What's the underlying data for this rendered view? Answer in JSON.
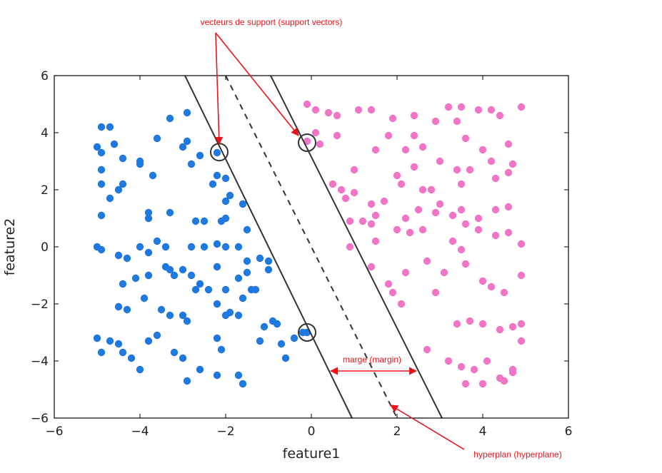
{
  "chart_data": {
    "type": "scatter",
    "title": "",
    "xlabel": "feature1",
    "ylabel": "feature2",
    "xlim": [
      -6,
      6
    ],
    "ylim": [
      -6,
      6
    ],
    "xticks": [
      -6,
      -4,
      -2,
      0,
      2,
      4,
      6
    ],
    "yticks": [
      -6,
      -4,
      -2,
      0,
      2,
      4,
      6
    ],
    "xtick_labels": [
      "−6",
      "−4",
      "−2",
      "0",
      "2",
      "4",
      "6"
    ],
    "ytick_labels": [
      "−6",
      "−4",
      "−2",
      "0",
      "2",
      "4",
      "6"
    ],
    "grid": false,
    "colors": {
      "class_a": "#1f77e0",
      "class_b": "#f075c6",
      "lines": "#333333",
      "annotations": "#e8141c"
    },
    "series": [
      {
        "points": [
          [
            -5.0,
            3.5
          ],
          [
            -4.9,
            4.2
          ],
          [
            -4.7,
            4.2
          ],
          [
            -4.9,
            3.3
          ],
          [
            -4.6,
            3.6
          ],
          [
            -4.4,
            3.1
          ],
          [
            -4.0,
            3.0
          ],
          [
            -4.0,
            2.9
          ],
          [
            -3.7,
            2.5
          ],
          [
            -3.6,
            3.8
          ],
          [
            -3.3,
            4.5
          ],
          [
            -2.9,
            4.7
          ],
          [
            -3.0,
            3.5
          ],
          [
            -2.9,
            3.7
          ],
          [
            -2.8,
            2.9
          ],
          [
            -2.6,
            3.2
          ],
          [
            -2.2,
            3.3
          ],
          [
            -2.2,
            2.5
          ],
          [
            -2.0,
            2.4
          ],
          [
            -2.3,
            2.2
          ],
          [
            -4.9,
            2.7
          ],
          [
            -4.9,
            2.2
          ],
          [
            -4.7,
            1.7
          ],
          [
            -4.5,
            2.0
          ],
          [
            -4.4,
            2.2
          ],
          [
            -4.9,
            1.1
          ],
          [
            -3.8,
            1.2
          ],
          [
            -3.8,
            1.0
          ],
          [
            -3.3,
            1.2
          ],
          [
            -2.7,
            0.9
          ],
          [
            -2.5,
            0.9
          ],
          [
            -2.0,
            1.6
          ],
          [
            -1.9,
            1.8
          ],
          [
            -1.6,
            1.5
          ],
          [
            -2.0,
            1.0
          ],
          [
            -2.1,
            0.9
          ],
          [
            -1.5,
            0.6
          ],
          [
            -5.0,
            0.0
          ],
          [
            -4.9,
            -0.1
          ],
          [
            -4.5,
            -0.3
          ],
          [
            -4.3,
            -0.4
          ],
          [
            -4.0,
            0.0
          ],
          [
            -3.8,
            -0.2
          ],
          [
            -3.6,
            0.2
          ],
          [
            -3.4,
            0.0
          ],
          [
            -2.8,
            0.0
          ],
          [
            -2.5,
            0.0
          ],
          [
            -2.2,
            0.1
          ],
          [
            -2.0,
            0.0
          ],
          [
            -1.7,
            0.0
          ],
          [
            -1.5,
            -0.5
          ],
          [
            -1.2,
            -0.4
          ],
          [
            -1.0,
            -0.5
          ],
          [
            -1.0,
            -0.8
          ],
          [
            -3.8,
            -1.0
          ],
          [
            -4.1,
            -1.1
          ],
          [
            -3.4,
            -0.7
          ],
          [
            -3.3,
            -0.8
          ],
          [
            -3.2,
            -1.0
          ],
          [
            -3.0,
            -0.8
          ],
          [
            -2.8,
            -1.0
          ],
          [
            -2.6,
            -1.3
          ],
          [
            -2.4,
            -1.5
          ],
          [
            -2.2,
            -0.7
          ],
          [
            -2.0,
            -1.5
          ],
          [
            -1.7,
            -1.1
          ],
          [
            -1.5,
            -0.9
          ],
          [
            -1.4,
            -1.5
          ],
          [
            -4.4,
            -1.3
          ],
          [
            -4.5,
            -2.1
          ],
          [
            -4.3,
            -2.2
          ],
          [
            -3.9,
            -1.8
          ],
          [
            -3.5,
            -2.2
          ],
          [
            -3.3,
            -2.4
          ],
          [
            -3.0,
            -2.4
          ],
          [
            -2.9,
            -2.6
          ],
          [
            -2.7,
            -1.5
          ],
          [
            -2.2,
            -2.0
          ],
          [
            -2.0,
            -2.4
          ],
          [
            -1.9,
            -2.3
          ],
          [
            -1.7,
            -2.4
          ],
          [
            -1.6,
            -1.8
          ],
          [
            -1.3,
            -1.5
          ],
          [
            -5.0,
            -3.2
          ],
          [
            -4.9,
            -3.7
          ],
          [
            -4.7,
            -3.3
          ],
          [
            -4.5,
            -3.4
          ],
          [
            -4.4,
            -3.7
          ],
          [
            -4.2,
            -3.9
          ],
          [
            -4.0,
            -4.3
          ],
          [
            -3.8,
            -3.3
          ],
          [
            -3.6,
            -3.1
          ],
          [
            -3.2,
            -3.7
          ],
          [
            -3.0,
            -3.9
          ],
          [
            -2.9,
            -4.7
          ],
          [
            -2.6,
            -4.3
          ],
          [
            -2.2,
            -4.5
          ],
          [
            -2.1,
            -3.6
          ],
          [
            -2.2,
            -3.2
          ],
          [
            -1.7,
            -4.5
          ],
          [
            -1.6,
            -4.8
          ],
          [
            -1.2,
            -3.3
          ],
          [
            -1.1,
            -2.8
          ],
          [
            -0.9,
            -2.6
          ],
          [
            -0.8,
            -2.7
          ],
          [
            -0.7,
            -3.4
          ],
          [
            -0.6,
            -3.9
          ],
          [
            -0.4,
            -3.2
          ],
          [
            -0.2,
            -3.0
          ],
          [
            -0.1,
            -3.0
          ]
        ]
      },
      {
        "points": [
          [
            -0.1,
            5.0
          ],
          [
            0.1,
            4.8
          ],
          [
            0.4,
            4.7
          ],
          [
            0.6,
            4.6
          ],
          [
            0.1,
            4.0
          ],
          [
            0.6,
            3.9
          ],
          [
            -0.1,
            3.7
          ],
          [
            0.2,
            3.6
          ],
          [
            1.1,
            4.8
          ],
          [
            1.4,
            4.8
          ],
          [
            1.9,
            4.5
          ],
          [
            2.4,
            4.6
          ],
          [
            1.8,
            3.9
          ],
          [
            2.4,
            3.9
          ],
          [
            2.9,
            4.4
          ],
          [
            3.2,
            4.9
          ],
          [
            3.5,
            4.9
          ],
          [
            3.4,
            4.4
          ],
          [
            3.9,
            4.8
          ],
          [
            4.2,
            4.8
          ],
          [
            4.4,
            4.6
          ],
          [
            4.9,
            4.9
          ],
          [
            1.5,
            3.4
          ],
          [
            2.2,
            3.4
          ],
          [
            2.6,
            3.5
          ],
          [
            3.0,
            3.0
          ],
          [
            3.6,
            3.8
          ],
          [
            4.0,
            3.4
          ],
          [
            4.2,
            3.0
          ],
          [
            4.6,
            3.6
          ],
          [
            4.7,
            2.9
          ],
          [
            0.5,
            2.2
          ],
          [
            0.7,
            2.0
          ],
          [
            1.0,
            2.7
          ],
          [
            1.0,
            1.9
          ],
          [
            1.4,
            1.5
          ],
          [
            1.5,
            1.1
          ],
          [
            2.0,
            2.5
          ],
          [
            2.1,
            2.2
          ],
          [
            2.4,
            2.8
          ],
          [
            2.6,
            2.0
          ],
          [
            2.8,
            2.0
          ],
          [
            3.0,
            1.5
          ],
          [
            3.4,
            2.7
          ],
          [
            3.7,
            2.7
          ],
          [
            3.5,
            2.2
          ],
          [
            4.3,
            2.4
          ],
          [
            4.6,
            2.6
          ],
          [
            0.8,
            1.7
          ],
          [
            0.9,
            0.9
          ],
          [
            1.2,
            0.9
          ],
          [
            1.4,
            0.8
          ],
          [
            1.7,
            1.6
          ],
          [
            2.2,
            1.0
          ],
          [
            2.5,
            1.3
          ],
          [
            2.6,
            0.6
          ],
          [
            2.9,
            1.2
          ],
          [
            3.3,
            1.1
          ],
          [
            3.5,
            1.3
          ],
          [
            3.6,
            0.8
          ],
          [
            3.9,
            1.0
          ],
          [
            4.3,
            1.3
          ],
          [
            4.6,
            1.4
          ],
          [
            0.9,
            0.0
          ],
          [
            1.5,
            0.2
          ],
          [
            2.0,
            0.6
          ],
          [
            2.3,
            0.5
          ],
          [
            3.3,
            0.2
          ],
          [
            3.5,
            -0.1
          ],
          [
            3.9,
            0.6
          ],
          [
            4.3,
            0.4
          ],
          [
            4.6,
            0.5
          ],
          [
            4.9,
            0.1
          ],
          [
            1.4,
            -0.7
          ],
          [
            1.8,
            -1.3
          ],
          [
            2.2,
            -0.9
          ],
          [
            2.7,
            -0.5
          ],
          [
            3.1,
            -0.9
          ],
          [
            3.6,
            -0.6
          ],
          [
            4.0,
            -1.2
          ],
          [
            4.2,
            -1.4
          ],
          [
            4.5,
            -1.6
          ],
          [
            4.9,
            -1.0
          ],
          [
            1.9,
            -1.6
          ],
          [
            2.1,
            -2.0
          ],
          [
            2.9,
            -1.6
          ],
          [
            3.4,
            -2.7
          ],
          [
            3.7,
            -2.6
          ],
          [
            4.0,
            -2.7
          ],
          [
            4.4,
            -2.9
          ],
          [
            4.7,
            -2.8
          ],
          [
            4.9,
            -2.7
          ],
          [
            2.7,
            -3.6
          ],
          [
            3.2,
            -4.0
          ],
          [
            3.5,
            -4.2
          ],
          [
            3.8,
            -4.3
          ],
          [
            4.1,
            -4.0
          ],
          [
            4.4,
            -4.6
          ],
          [
            4.7,
            -4.3
          ],
          [
            4.9,
            -3.3
          ],
          [
            3.6,
            -4.8
          ],
          [
            4.0,
            -4.8
          ],
          [
            4.5,
            -4.7
          ],
          [
            4.7,
            -4.4
          ]
        ]
      }
    ],
    "support_vectors": [
      [
        -2.15,
        3.32
      ],
      [
        -0.1,
        3.65
      ],
      [
        -0.1,
        -3.0
      ]
    ],
    "lines": [
      {
        "style": "solid",
        "points": [
          [
            -2.95,
            6
          ],
          [
            0.95,
            -6
          ]
        ]
      },
      {
        "style": "dashed",
        "points": [
          [
            -2.0,
            6
          ],
          [
            2.0,
            -6
          ]
        ]
      },
      {
        "style": "solid",
        "points": [
          [
            -0.95,
            6
          ],
          [
            3.05,
            -6
          ]
        ]
      }
    ],
    "annotations": [
      {
        "text": "vecteurs de support (support vectors)",
        "targets": [
          [
            -2.15,
            3.6
          ],
          [
            -0.3,
            3.9
          ]
        ]
      },
      {
        "text": "marge (margin)",
        "arrow_from": [
          0.45,
          -4.35
        ],
        "arrow_to": [
          2.45,
          -4.35
        ]
      },
      {
        "text": "hyperplan (hyperplane)",
        "target": [
          1.85,
          -5.55
        ]
      }
    ]
  }
}
